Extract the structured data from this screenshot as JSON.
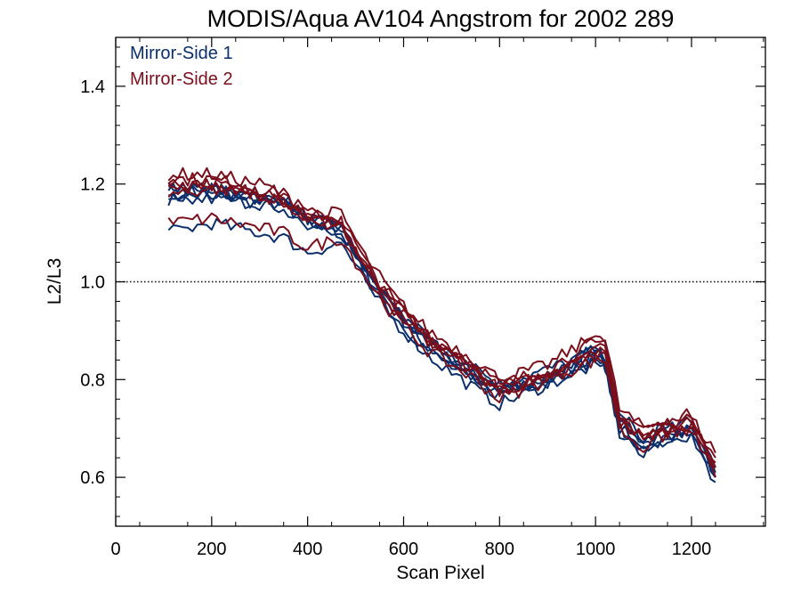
{
  "chart_data": {
    "type": "line",
    "title": "MODIS/Aqua AV104 Angstrom for 2002 289",
    "xlabel": "Scan Pixel",
    "ylabel": "L2/L3",
    "xlim": [
      0,
      1354
    ],
    "ylim": [
      0.5,
      1.5
    ],
    "xticks": [
      0,
      200,
      400,
      600,
      800,
      1000,
      1200
    ],
    "xtick_labels": [
      "0",
      "200",
      "400",
      "600",
      "800",
      "1000",
      "1200"
    ],
    "yticks": [
      0.6,
      0.8,
      1.0,
      1.2,
      1.4
    ],
    "ytick_labels": [
      "0.6",
      "0.8",
      "1.0",
      "1.2",
      "1.4"
    ],
    "reference_line": {
      "y": 1.0,
      "style": "dotted"
    },
    "grid": false,
    "legend_position": "top-left",
    "x": [
      110,
      200,
      300,
      350,
      400,
      470,
      520,
      580,
      650,
      750,
      800,
      900,
      1000,
      1020,
      1050,
      1100,
      1150,
      1200,
      1250
    ],
    "series": [
      {
        "name": "Mirror-Side 1",
        "color": "#0b2f6b",
        "lines": [
          [
            1.17,
            1.18,
            1.16,
            1.16,
            1.12,
            1.1,
            1.02,
            0.94,
            0.87,
            0.8,
            0.78,
            0.8,
            0.85,
            0.84,
            0.7,
            0.66,
            0.69,
            0.7,
            0.6
          ],
          [
            1.19,
            1.19,
            1.17,
            1.17,
            1.13,
            1.11,
            1.03,
            0.95,
            0.88,
            0.81,
            0.77,
            0.81,
            0.86,
            0.83,
            0.71,
            0.67,
            0.7,
            0.69,
            0.61
          ],
          [
            1.18,
            1.18,
            1.18,
            1.15,
            1.12,
            1.12,
            1.02,
            0.94,
            0.87,
            0.82,
            0.78,
            0.79,
            0.87,
            0.85,
            0.73,
            0.68,
            0.71,
            0.71,
            0.62
          ],
          [
            1.2,
            1.19,
            1.17,
            1.16,
            1.13,
            1.1,
            1.01,
            0.93,
            0.86,
            0.79,
            0.77,
            0.8,
            0.84,
            0.82,
            0.7,
            0.65,
            0.68,
            0.68,
            0.6
          ],
          [
            1.16,
            1.17,
            1.16,
            1.16,
            1.11,
            1.11,
            1.02,
            0.95,
            0.88,
            0.81,
            0.79,
            0.82,
            0.86,
            0.84,
            0.72,
            0.67,
            0.7,
            0.7,
            0.61
          ],
          [
            1.1,
            1.12,
            1.1,
            1.09,
            1.06,
            1.08,
            1.0,
            0.92,
            0.85,
            0.78,
            0.75,
            0.79,
            0.83,
            0.83,
            0.69,
            0.65,
            0.68,
            0.69,
            0.59
          ]
        ]
      },
      {
        "name": "Mirror-Side 2",
        "color": "#7a0f1c",
        "lines": [
          [
            1.2,
            1.2,
            1.18,
            1.17,
            1.13,
            1.12,
            1.03,
            0.95,
            0.88,
            0.82,
            0.78,
            0.81,
            0.87,
            0.86,
            0.72,
            0.69,
            0.7,
            0.72,
            0.63
          ],
          [
            1.21,
            1.21,
            1.19,
            1.18,
            1.14,
            1.13,
            1.04,
            0.96,
            0.89,
            0.83,
            0.79,
            0.82,
            0.88,
            0.87,
            0.73,
            0.7,
            0.71,
            0.73,
            0.64
          ],
          [
            1.19,
            1.2,
            1.18,
            1.16,
            1.12,
            1.12,
            1.03,
            0.96,
            0.89,
            0.81,
            0.78,
            0.8,
            0.86,
            0.85,
            0.71,
            0.68,
            0.7,
            0.71,
            0.62
          ],
          [
            1.22,
            1.22,
            1.2,
            1.18,
            1.14,
            1.14,
            1.05,
            0.97,
            0.9,
            0.84,
            0.8,
            0.83,
            0.89,
            0.88,
            0.74,
            0.7,
            0.72,
            0.72,
            0.65
          ],
          [
            1.18,
            1.19,
            1.18,
            1.17,
            1.13,
            1.12,
            1.02,
            0.94,
            0.88,
            0.82,
            0.77,
            0.81,
            0.85,
            0.86,
            0.72,
            0.68,
            0.69,
            0.7,
            0.62
          ],
          [
            1.12,
            1.13,
            1.11,
            1.1,
            1.07,
            1.09,
            1.01,
            0.93,
            0.86,
            0.8,
            0.76,
            0.8,
            0.84,
            0.84,
            0.7,
            0.66,
            0.69,
            0.7,
            0.6
          ]
        ]
      }
    ]
  }
}
